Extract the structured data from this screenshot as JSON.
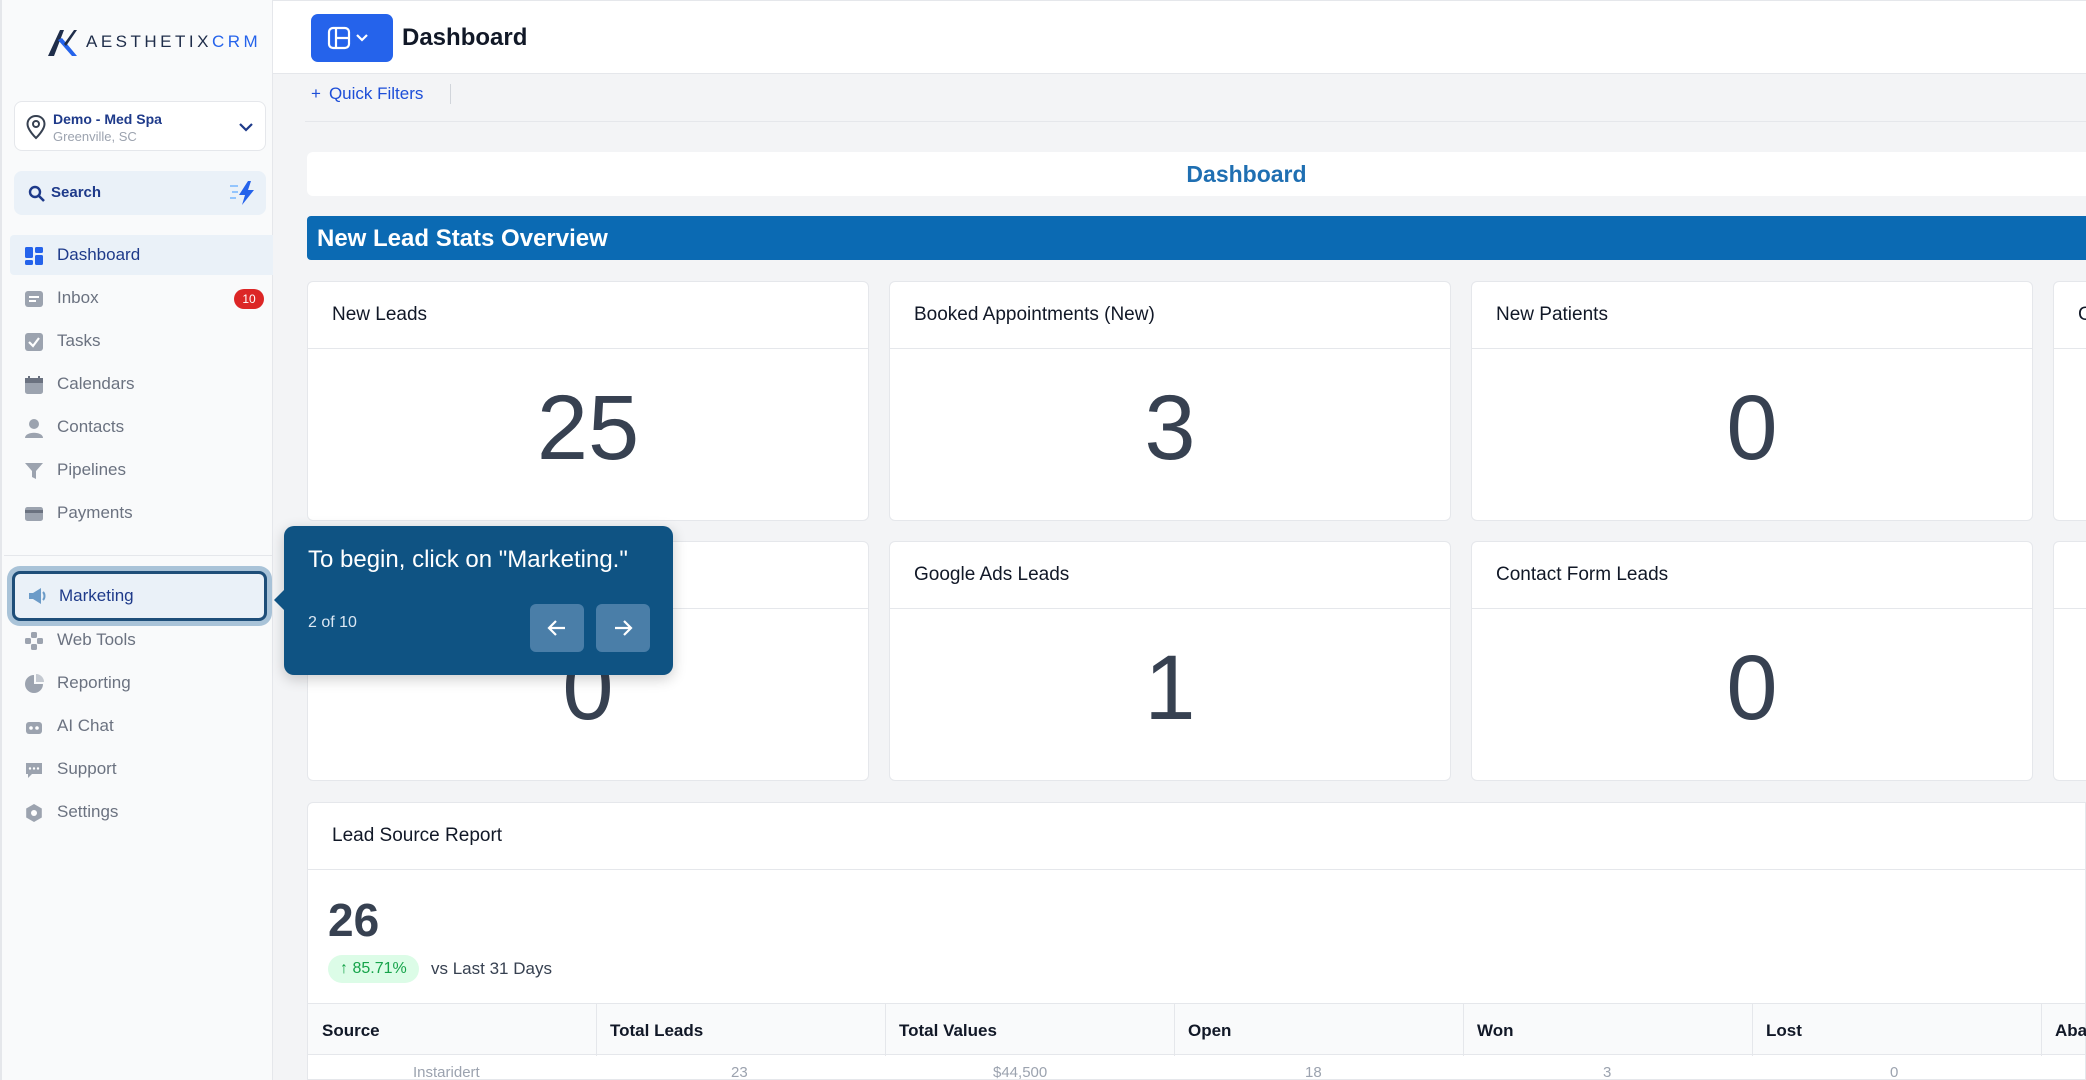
{
  "brand": {
    "name_main": "AESTHETIX",
    "name_accent": "CRM"
  },
  "location": {
    "name": "Demo - Med Spa",
    "city": "Greenville, SC"
  },
  "search": {
    "label": "Search"
  },
  "nav": {
    "items": [
      {
        "label": "Dashboard",
        "icon": "dashboard-icon"
      },
      {
        "label": "Inbox",
        "icon": "inbox-icon",
        "badge": "10"
      },
      {
        "label": "Tasks",
        "icon": "tasks-icon"
      },
      {
        "label": "Calendars",
        "icon": "calendar-icon"
      },
      {
        "label": "Contacts",
        "icon": "contacts-icon"
      },
      {
        "label": "Pipelines",
        "icon": "pipelines-icon"
      },
      {
        "label": "Payments",
        "icon": "payments-icon"
      }
    ],
    "secondary": [
      {
        "label": "Marketing",
        "icon": "megaphone-icon"
      },
      {
        "label": "Web Tools",
        "icon": "web-tools-icon"
      },
      {
        "label": "Reporting",
        "icon": "pie-chart-icon"
      },
      {
        "label": "AI Chat",
        "icon": "robot-icon"
      },
      {
        "label": "Support",
        "icon": "chat-bubble-icon"
      },
      {
        "label": "Settings",
        "icon": "gear-icon"
      }
    ]
  },
  "header": {
    "title": "Dashboard"
  },
  "filters": {
    "quick_filters": "Quick Filters"
  },
  "dashboard": {
    "title": "Dashboard",
    "section": "New Lead Stats Overview",
    "cards": [
      {
        "title": "New Leads",
        "value": "25"
      },
      {
        "title": "Booked Appointments (New)",
        "value": "3"
      },
      {
        "title": "New Patients",
        "value": "0"
      },
      {
        "title": "C",
        "value": ""
      },
      {
        "title": "",
        "value": "0"
      },
      {
        "title": "Google Ads Leads",
        "value": "1"
      },
      {
        "title": "Contact Form Leads",
        "value": "0"
      }
    ]
  },
  "report": {
    "title": "Lead Source Report",
    "total": "26",
    "change": "↑ 85.71%",
    "comparison": "vs Last 31 Days",
    "columns": [
      "Source",
      "Total Leads",
      "Total Values",
      "Open",
      "Won",
      "Lost",
      "Aban"
    ],
    "ghost_row": [
      "Instaridert",
      "23",
      "$44,500",
      "18",
      "3",
      "0"
    ]
  },
  "tooltip": {
    "message": "To begin, click on \"Marketing.\"",
    "step": "2 of 10"
  },
  "colors": {
    "primary": "#2563eb",
    "overview_bar": "#0b6ab3",
    "tooltip": "#0f5383",
    "badge": "#dc2626"
  }
}
